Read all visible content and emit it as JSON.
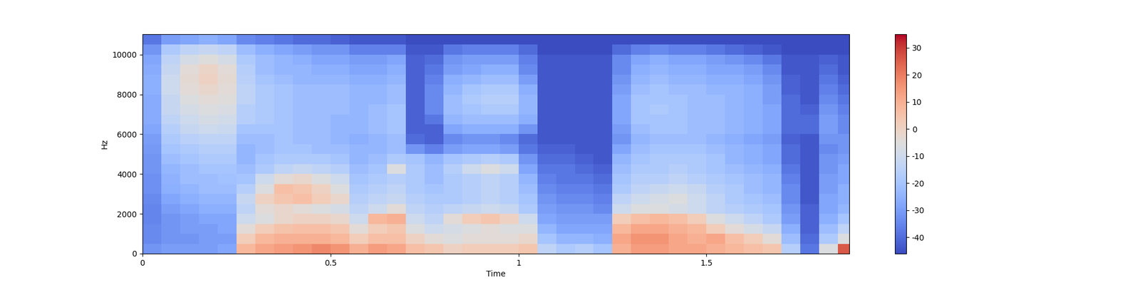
{
  "chart_data": {
    "type": "heatmap",
    "x_label": "Time",
    "y_label": "Hz",
    "xlim": [
      0,
      1.88
    ],
    "xticks": [
      0,
      0.5,
      1,
      1.5
    ],
    "ylim": [
      0,
      11025
    ],
    "yticks": [
      0,
      2000,
      4000,
      6000,
      8000,
      10000
    ],
    "color": "coolwarm",
    "colorbar_range": [
      -46,
      35
    ],
    "colorbar_ticks": [
      -40,
      -30,
      -20,
      -10,
      0,
      10,
      20,
      30
    ],
    "x_edges": [
      0,
      0.05,
      0.1,
      0.15,
      0.2,
      0.25,
      0.3,
      0.35,
      0.4,
      0.45,
      0.5,
      0.55,
      0.6,
      0.65,
      0.7,
      0.75,
      0.8,
      0.85,
      0.9,
      0.95,
      1.0,
      1.05,
      1.1,
      1.15,
      1.2,
      1.25,
      1.3,
      1.35,
      1.4,
      1.45,
      1.5,
      1.55,
      1.6,
      1.65,
      1.7,
      1.75,
      1.8,
      1.85,
      1.88
    ],
    "y_edges": [
      0,
      500,
      1000,
      1500,
      2000,
      2500,
      3000,
      3500,
      4000,
      4500,
      5000,
      5500,
      6000,
      6500,
      7000,
      7500,
      8000,
      8500,
      9000,
      9500,
      10000,
      10500,
      11025
    ],
    "cells": [
      [
        -32,
        -34,
        -34,
        -35,
        -35,
        -34,
        -33,
        -33,
        -32,
        -32,
        -31,
        -30,
        -28,
        -27,
        -27,
        -27,
        -26,
        -26,
        -27,
        -28,
        -32,
        -38
      ],
      [
        -30,
        -32,
        -32,
        -32,
        -30,
        -28,
        -26,
        -25,
        -24,
        -22,
        -20,
        -18,
        -16,
        -14,
        -12,
        -12,
        -10,
        -10,
        -12,
        -14,
        -18,
        -30
      ],
      [
        -30,
        -32,
        -30,
        -30,
        -28,
        -26,
        -24,
        -22,
        -22,
        -20,
        -18,
        -15,
        -12,
        -10,
        -8,
        -6,
        -4,
        -3,
        -4,
        -8,
        -14,
        -28
      ],
      [
        -30,
        -30,
        -30,
        -28,
        -26,
        -24,
        -22,
        -22,
        -20,
        -18,
        -16,
        -14,
        -10,
        -8,
        -6,
        -4,
        -2,
        0,
        -1,
        -5,
        -12,
        -26
      ],
      [
        -28,
        -30,
        -28,
        -28,
        -26,
        -24,
        -22,
        -21,
        -20,
        -18,
        -16,
        -14,
        -11,
        -9,
        -7,
        -5,
        -4,
        -3,
        -4,
        -8,
        -14,
        -28
      ],
      [
        8,
        2,
        -4,
        -10,
        -14,
        -12,
        -16,
        -20,
        -22,
        -24,
        -24,
        -22,
        -20,
        -16,
        -16,
        -14,
        -14,
        -15,
        -16,
        -18,
        -22,
        -34
      ],
      [
        12,
        8,
        2,
        -6,
        -4,
        0,
        -6,
        -10,
        -18,
        -20,
        -22,
        -22,
        -20,
        -18,
        -18,
        -18,
        -18,
        -20,
        -22,
        -22,
        -26,
        -36
      ],
      [
        14,
        10,
        5,
        -2,
        -2,
        4,
        6,
        -4,
        -14,
        -18,
        -20,
        -20,
        -20,
        -20,
        -20,
        -20,
        -20,
        -22,
        -24,
        -24,
        -28,
        -38
      ],
      [
        16,
        10,
        6,
        0,
        -4,
        6,
        4,
        -2,
        -12,
        -18,
        -20,
        -22,
        -22,
        -22,
        -22,
        -22,
        -22,
        -24,
        -24,
        -26,
        -30,
        -40
      ],
      [
        18,
        10,
        6,
        0,
        -6,
        2,
        0,
        -6,
        -14,
        -18,
        -22,
        -22,
        -22,
        -22,
        -22,
        -22,
        -22,
        -24,
        -26,
        -28,
        -32,
        -40
      ],
      [
        16,
        8,
        4,
        -2,
        -8,
        -2,
        -6,
        -10,
        -16,
        -20,
        -22,
        -24,
        -24,
        -24,
        -22,
        -22,
        -22,
        -24,
        -26,
        -28,
        -32,
        -42
      ],
      [
        10,
        2,
        -4,
        -10,
        -14,
        -16,
        -18,
        -20,
        -22,
        -24,
        -24,
        -26,
        -24,
        -24,
        -24,
        -24,
        -24,
        -26,
        -28,
        -30,
        -36,
        -44
      ],
      [
        14,
        6,
        2,
        8,
        -10,
        -14,
        -16,
        -18,
        -20,
        -22,
        -24,
        -24,
        -22,
        -22,
        -22,
        -24,
        -24,
        -26,
        -28,
        -30,
        -36,
        -44
      ],
      [
        12,
        6,
        4,
        10,
        -4,
        -12,
        -14,
        -16,
        -6,
        -18,
        -22,
        -22,
        -20,
        -20,
        -20,
        -22,
        -22,
        -24,
        -26,
        -28,
        -36,
        -44
      ],
      [
        6,
        0,
        -6,
        -10,
        -14,
        -16,
        -18,
        -18,
        -18,
        -20,
        -32,
        -40,
        -42,
        -42,
        -42,
        -42,
        -42,
        -42,
        -42,
        -42,
        -44,
        -46
      ],
      [
        4,
        -4,
        -10,
        -14,
        -16,
        -18,
        -20,
        -22,
        -22,
        -24,
        -36,
        -42,
        -42,
        -38,
        -34,
        -34,
        -34,
        -36,
        -38,
        -40,
        -44,
        -46
      ],
      [
        0,
        -6,
        -8,
        -4,
        -14,
        -18,
        -18,
        -18,
        -16,
        -20,
        -30,
        -34,
        -28,
        -24,
        -22,
        -22,
        -24,
        -26,
        -30,
        -32,
        -38,
        -46
      ],
      [
        2,
        -4,
        -6,
        2,
        -12,
        -16,
        -16,
        -16,
        -10,
        -18,
        -28,
        -32,
        -26,
        -22,
        -20,
        -18,
        -20,
        -24,
        -28,
        -30,
        -36,
        -46
      ],
      [
        2,
        -4,
        -4,
        4,
        -10,
        -14,
        -14,
        -14,
        -6,
        -16,
        -28,
        -32,
        -26,
        -22,
        -18,
        -16,
        -18,
        -22,
        -26,
        -30,
        -36,
        -46
      ],
      [
        2,
        -4,
        -6,
        0,
        -12,
        -16,
        -16,
        -16,
        -10,
        -18,
        -30,
        -34,
        -26,
        -22,
        -18,
        -16,
        -18,
        -22,
        -26,
        -30,
        -36,
        -46
      ],
      [
        4,
        -2,
        -6,
        -10,
        -18,
        -20,
        -22,
        -24,
        -28,
        -32,
        -38,
        -40,
        -32,
        -26,
        -24,
        -24,
        -26,
        -30,
        -34,
        -36,
        -40,
        -46
      ],
      [
        -14,
        -20,
        -24,
        -28,
        -30,
        -32,
        -34,
        -36,
        -38,
        -40,
        -42,
        -44,
        -44,
        -44,
        -44,
        -44,
        -44,
        -44,
        -44,
        -44,
        -46,
        -46
      ],
      [
        -18,
        -24,
        -28,
        -30,
        -32,
        -34,
        -36,
        -38,
        -38,
        -40,
        -42,
        -44,
        -44,
        -44,
        -44,
        -44,
        -44,
        -44,
        -44,
        -44,
        -46,
        -46
      ],
      [
        -16,
        -24,
        -28,
        -30,
        -32,
        -34,
        -36,
        -38,
        -40,
        -42,
        -44,
        -44,
        -44,
        -44,
        -44,
        -44,
        -44,
        -44,
        -44,
        -44,
        -46,
        -46
      ],
      [
        -20,
        -26,
        -28,
        -30,
        -34,
        -36,
        -38,
        -40,
        -42,
        -44,
        -44,
        -44,
        -44,
        -44,
        -44,
        -44,
        -44,
        -44,
        -44,
        -44,
        -46,
        -46
      ],
      [
        10,
        12,
        8,
        2,
        -10,
        -14,
        -18,
        -20,
        -22,
        -24,
        -28,
        -32,
        -30,
        -28,
        -28,
        -28,
        -30,
        -32,
        -34,
        -34,
        -40,
        -46
      ],
      [
        14,
        16,
        12,
        6,
        -6,
        -10,
        -14,
        -16,
        -18,
        -20,
        -22,
        -24,
        -22,
        -20,
        -20,
        -20,
        -22,
        -24,
        -26,
        -28,
        -36,
        -46
      ],
      [
        14,
        16,
        12,
        8,
        -6,
        -8,
        -12,
        -16,
        -18,
        -18,
        -20,
        -22,
        -20,
        -20,
        -18,
        -20,
        -20,
        -22,
        -24,
        -26,
        -34,
        -46
      ],
      [
        12,
        12,
        10,
        6,
        -8,
        -6,
        -10,
        -14,
        -16,
        -18,
        -20,
        -22,
        -20,
        -20,
        -20,
        -20,
        -22,
        -24,
        -26,
        -28,
        -36,
        -46
      ],
      [
        12,
        10,
        8,
        2,
        -10,
        -10,
        -12,
        -16,
        -18,
        -18,
        -20,
        -22,
        -22,
        -22,
        -22,
        -22,
        -22,
        -24,
        -26,
        -28,
        -36,
        -46
      ],
      [
        10,
        12,
        2,
        -6,
        -14,
        -14,
        -16,
        -18,
        -20,
        -20,
        -22,
        -24,
        -22,
        -22,
        -22,
        -22,
        -24,
        -26,
        -28,
        -30,
        -38,
        -46
      ],
      [
        8,
        6,
        -4,
        -10,
        -16,
        -18,
        -18,
        -20,
        -22,
        -24,
        -24,
        -26,
        -24,
        -24,
        -24,
        -24,
        -24,
        -26,
        -28,
        -32,
        -40,
        -46
      ],
      [
        6,
        2,
        -8,
        -14,
        -18,
        -20,
        -22,
        -22,
        -24,
        -26,
        -26,
        -28,
        -26,
        -26,
        -26,
        -26,
        -26,
        -28,
        -30,
        -34,
        -42,
        -46
      ],
      [
        4,
        -4,
        -12,
        -18,
        -20,
        -22,
        -24,
        -24,
        -26,
        -28,
        -28,
        -30,
        -28,
        -28,
        -28,
        -30,
        -30,
        -32,
        -34,
        -38,
        -44,
        -46
      ],
      [
        -16,
        -22,
        -26,
        -30,
        -32,
        -34,
        -34,
        -36,
        -38,
        -40,
        -40,
        -42,
        -40,
        -40,
        -40,
        -40,
        -42,
        -42,
        -44,
        -44,
        -46,
        -46
      ],
      [
        -38,
        -40,
        -42,
        -42,
        -42,
        -44,
        -44,
        -44,
        -44,
        -44,
        -44,
        -44,
        -40,
        -40,
        -42,
        -44,
        -44,
        -44,
        -44,
        -44,
        -46,
        -46
      ],
      [
        -6,
        -18,
        -22,
        -26,
        -28,
        -28,
        -30,
        -30,
        -32,
        -32,
        -34,
        -32,
        -30,
        -30,
        -32,
        -34,
        -36,
        -38,
        -40,
        -42,
        -46,
        -46
      ],
      [
        26,
        -6,
        -14,
        -20,
        -24,
        -26,
        -26,
        -28,
        -28,
        -30,
        -32,
        -32,
        -34,
        -34,
        -36,
        -38,
        -40,
        -42,
        -44,
        -44,
        -46,
        -46
      ]
    ]
  }
}
